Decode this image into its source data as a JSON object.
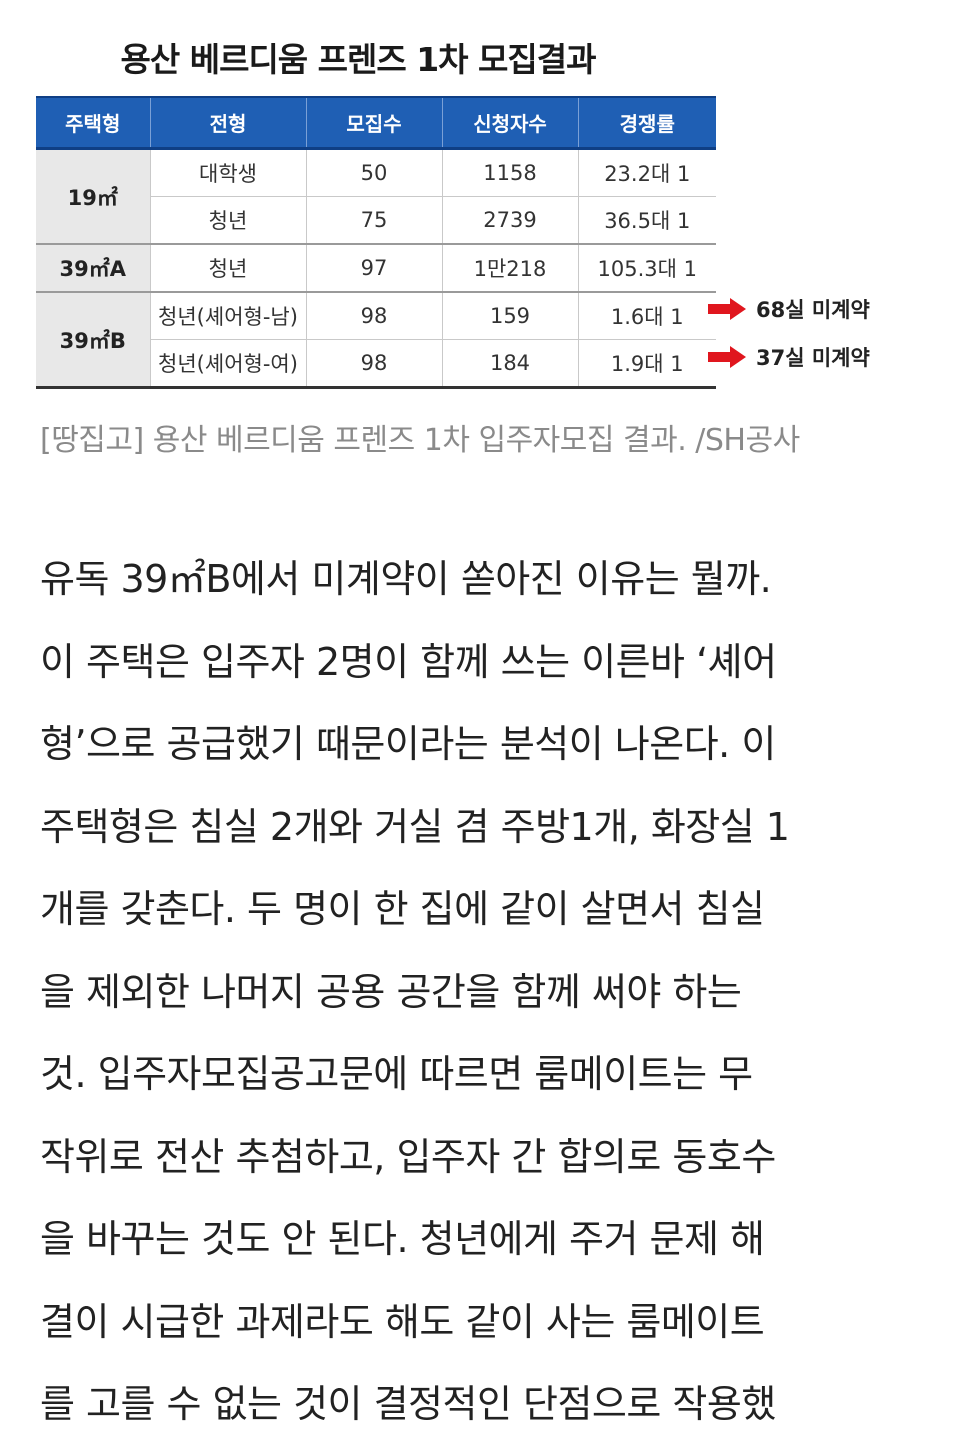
{
  "figure": {
    "title": "용산 베르디움 프렌즈 1차 모집결과",
    "headers": [
      "주택형",
      "전형",
      "모집수",
      "신청자수",
      "경쟁률"
    ],
    "rows": [
      {
        "type": "19㎡",
        "category": "대학생",
        "recruit": "50",
        "applicants": "1158",
        "ratio": "23.2대 1"
      },
      {
        "type": "",
        "category": "청년",
        "recruit": "75",
        "applicants": "2739",
        "ratio": "36.5대 1"
      },
      {
        "type": "39㎡A",
        "category": "청년",
        "recruit": "97",
        "applicants": "1만218",
        "ratio": "105.3대 1"
      },
      {
        "type": "39㎡B",
        "category": "청년(셰어형-남)",
        "recruit": "98",
        "applicants": "159",
        "ratio": "1.6대 1"
      },
      {
        "type": "",
        "category": "청년(셰어형-여)",
        "recruit": "98",
        "applicants": "184",
        "ratio": "1.9대 1"
      }
    ],
    "notes": [
      "68실 미계약",
      "37실 미계약"
    ],
    "arrow_color": "#e0161e",
    "header_color": "#1f5fb4"
  },
  "caption": "[땅집고] 용산 베르디움 프렌즈 1차 입주자모집 결과. /SH공사",
  "article_lines": [
    "유독 39㎡B에서 미계약이 쏟아진 이유는 뭘까.",
    "이 주택은 입주자 2명이 함께 쓰는 이른바 ‘셰어",
    "형’으로 공급했기 때문이라는 분석이 나온다. 이",
    "주택형은 침실 2개와 거실 겸 주방1개, 화장실 1",
    "개를 갖춘다. 두 명이 한 집에 같이 살면서 침실",
    "을 제외한 나머지 공용 공간을 함께 써야 하는",
    "것. 입주자모집공고문에 따르면 룸메이트는 무",
    "작위로 전산 추첨하고, 입주자 간 합의로 동호수",
    "을 바꾸는 것도 안 된다. 청년에게 주거 문제 해",
    "결이 시급한 과제라도 해도 같이 사는 룸메이트",
    "를 고를 수 없는 것이 결정적인 단점으로 작용했"
  ]
}
